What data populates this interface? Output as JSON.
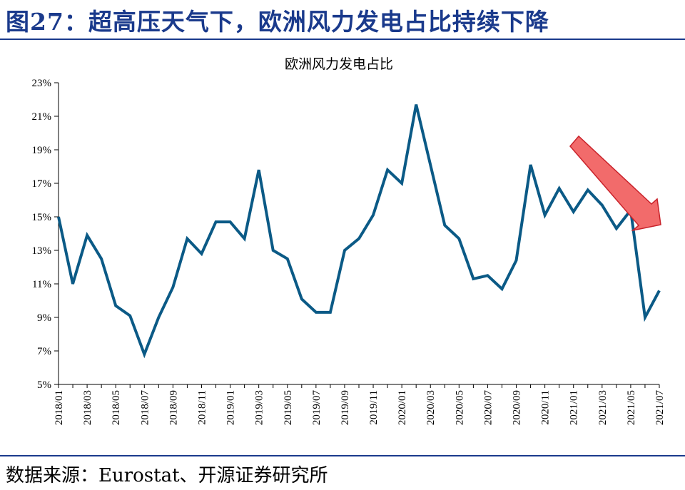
{
  "figure_title": "图27：超高压天气下，欧洲风力发电占比持续下降",
  "source_note": "数据来源：Eurostat、开源证券研究所",
  "colors": {
    "title": "#1a3a8c",
    "line": "#0b5a86",
    "arrow_fill": "#f26b6b",
    "arrow_stroke": "#c9232b"
  },
  "chart_data": {
    "type": "line",
    "title": "欧洲风力发电占比",
    "xlabel": "",
    "ylabel": "",
    "ylim": [
      5,
      23
    ],
    "yticks": [
      5,
      7,
      9,
      11,
      13,
      15,
      17,
      19,
      21,
      23
    ],
    "ytick_labels": [
      "5%",
      "7%",
      "9%",
      "11%",
      "13%",
      "15%",
      "17%",
      "19%",
      "21%",
      "23%"
    ],
    "x": [
      "2018/01",
      "2018/02",
      "2018/03",
      "2018/04",
      "2018/05",
      "2018/06",
      "2018/07",
      "2018/08",
      "2018/09",
      "2018/10",
      "2018/11",
      "2018/12",
      "2019/01",
      "2019/02",
      "2019/03",
      "2019/04",
      "2019/05",
      "2019/06",
      "2019/07",
      "2019/08",
      "2019/09",
      "2019/10",
      "2019/11",
      "2019/12",
      "2020/01",
      "2020/02",
      "2020/03",
      "2020/04",
      "2020/05",
      "2020/06",
      "2020/07",
      "2020/08",
      "2020/09",
      "2020/10",
      "2020/11",
      "2020/12",
      "2021/01",
      "2021/02",
      "2021/03",
      "2021/04",
      "2021/05",
      "2021/06",
      "2021/07"
    ],
    "xtick_labels": [
      "2018/01",
      "2018/03",
      "2018/05",
      "2018/07",
      "2018/09",
      "2018/11",
      "2019/01",
      "2019/03",
      "2019/05",
      "2019/07",
      "2019/09",
      "2019/11",
      "2020/01",
      "2020/03",
      "2020/05",
      "2020/07",
      "2020/09",
      "2020/11",
      "2021/01",
      "2021/03",
      "2021/05",
      "2021/07"
    ],
    "series": [
      {
        "name": "欧洲风力发电占比",
        "values": [
          15.0,
          11.0,
          13.9,
          12.5,
          9.7,
          9.1,
          6.8,
          9.0,
          10.8,
          13.7,
          12.8,
          14.7,
          14.7,
          13.7,
          17.8,
          13.0,
          12.5,
          10.1,
          9.3,
          9.3,
          13.0,
          13.7,
          15.1,
          17.8,
          17.0,
          21.7,
          18.1,
          14.5,
          13.7,
          11.3,
          11.5,
          10.7,
          12.4,
          18.1,
          15.1,
          16.7,
          15.3,
          16.6,
          15.7,
          14.3,
          15.4,
          9.0,
          10.6
        ]
      }
    ],
    "annotation": "downward-arrow"
  }
}
